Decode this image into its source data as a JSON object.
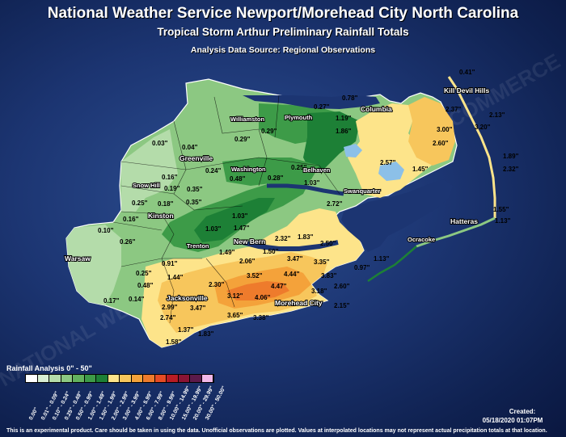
{
  "header": {
    "title": "National Weather Service Newport/Morehead City North Carolina",
    "subtitle": "Tropical Storm Arthur Preliminary Rainfall Totals",
    "source": "Analysis Data Source: Regional Observations"
  },
  "watermark": "NATIONAL WEATHER SERVICE · DEPARTMENT OF COMMERCE",
  "places": [
    {
      "name": "Kill Devil Hills",
      "id": "kill-devil-hills"
    },
    {
      "name": "Columbia",
      "id": "columbia"
    },
    {
      "name": "Williamston",
      "id": "williamston"
    },
    {
      "name": "Plymouth",
      "id": "plymouth"
    },
    {
      "name": "Greenville",
      "id": "greenville"
    },
    {
      "name": "Washington",
      "id": "washington"
    },
    {
      "name": "Belhaven",
      "id": "belhaven"
    },
    {
      "name": "Swanquarter",
      "id": "swanquarter"
    },
    {
      "name": "Snow Hill",
      "id": "snow-hill"
    },
    {
      "name": "Kinston",
      "id": "kinston"
    },
    {
      "name": "Trenton",
      "id": "trenton"
    },
    {
      "name": "New Bern",
      "id": "new-bern"
    },
    {
      "name": "Warsaw",
      "id": "warsaw"
    },
    {
      "name": "Jacksonville",
      "id": "jacksonville"
    },
    {
      "name": "Morehead City",
      "id": "morehead-city"
    },
    {
      "name": "Ocracoke",
      "id": "ocracoke"
    },
    {
      "name": "Hatteras",
      "id": "hatteras"
    }
  ],
  "rainfall_values": [
    "0.41\"",
    "0.78\"",
    "0.27\"",
    "2.37\"",
    "2.13\"",
    "3.20\"",
    "3.00\"",
    "2.60\"",
    "1.19\"",
    "1.86\"",
    "0.29\"",
    "0.29\"",
    "0.03\"",
    "0.04\"",
    "0.24\"",
    "0.48\"",
    "0.28\"",
    "0.25\"",
    "1.03\"",
    "2.57\"",
    "1.45\"",
    "1.89\"",
    "2.32\"",
    "0.16\"",
    "0.19\"",
    "0.35\"",
    "0.25\"",
    "0.18\"",
    "0.35\"",
    "0.16\"",
    "1.03\"",
    "2.72\"",
    "1.55\"",
    "1.13\"",
    "0.10\"",
    "0.26\"",
    "1.03\"",
    "1.47\"",
    "2.32\"",
    "1.83\"",
    "2.50\"",
    "1.49\"",
    "1.50\"",
    "2.06\"",
    "3.47\"",
    "3.35\"",
    "1.13\"",
    "0.91\"",
    "0.25\"",
    "1.44\"",
    "0.48\"",
    "2.30\"",
    "3.52\"",
    "4.44\"",
    "3.83\"",
    "0.97\"",
    "4.47\"",
    "2.60\"",
    "3.12\"",
    "4.06\"",
    "3.18\"",
    "0.17\"",
    "0.14\"",
    "2.99\"",
    "3.47\"",
    "2.15\"",
    "2.74\"",
    "3.65\"",
    "3.38\"",
    "1.37\"",
    "1.83\"",
    "1.58\""
  ],
  "legend": {
    "title": "Rainfall Analysis 0\" - 50\"",
    "bins": [
      "0.00\"",
      "0.01\" - 0.09\"",
      "0.10\" - 0.24\"",
      "0.25\" - 0.49\"",
      "0.50\" - 0.99\"",
      "1.00\" - 1.49\"",
      "1.50\" - 1.99\"",
      "2.00\" - 2.99\"",
      "3.00\" - 3.99\"",
      "4.00\" - 5.99\"",
      "6.00\" - 7.99\"",
      "8.00\" - 9.99\"",
      "10.00\" - 14.99\"",
      "15.00\" - 19.99\"",
      "20.00\" - 29.99\"",
      "30.00\" - 50.00\""
    ],
    "colors": [
      "#ffffff",
      "#d8eed4",
      "#b4dcaa",
      "#8cc882",
      "#63b25e",
      "#3d9b48",
      "#1d8036",
      "#fde48a",
      "#f7c65c",
      "#f4a23a",
      "#ee7b2c",
      "#e64b24",
      "#b81c24",
      "#8a1434",
      "#5c1a4a",
      "#f2b8e8"
    ]
  },
  "created": {
    "label": "Created:",
    "date": "05/18/2020 01:07PM"
  },
  "footer": "This is an experimental product. Care should be taken in using the data. Unofficial observations are plotted. Values at interpolated locations may not represent actual precipitation totals at that location."
}
